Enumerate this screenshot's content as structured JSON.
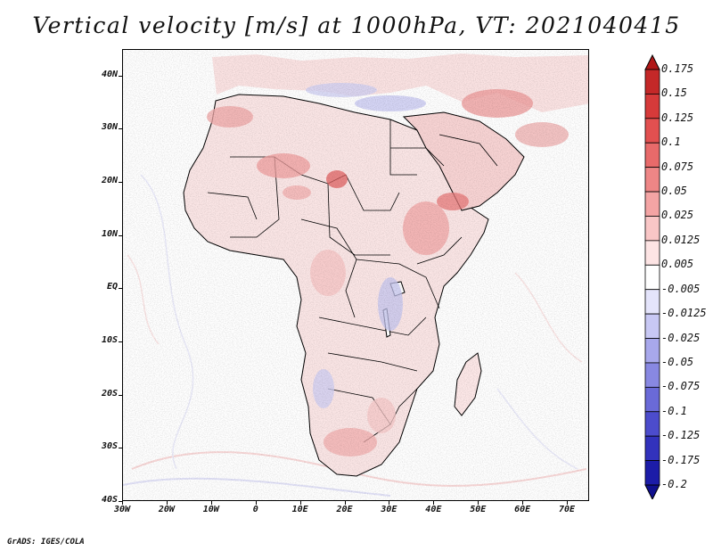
{
  "title": "Vertical velocity [m/s] at 1000hPa, VT: 2021040415",
  "credit": "GrADS: IGES/COLA",
  "map": {
    "lat_labels": [
      "40N",
      "30N",
      "20N",
      "10N",
      "EQ",
      "10S",
      "20S",
      "30S",
      "40S"
    ],
    "lon_labels": [
      "30W",
      "20W",
      "10W",
      "0",
      "10E",
      "20E",
      "30E",
      "40E",
      "50E",
      "60E",
      "70E"
    ],
    "lat_range": [
      -40,
      45
    ],
    "lon_range": [
      -30,
      75
    ]
  },
  "colorbar": {
    "labels": [
      "0.175",
      "0.15",
      "0.125",
      "0.1",
      "0.075",
      "0.05",
      "0.025",
      "0.0125",
      "0.005",
      "-0.005",
      "-0.0125",
      "-0.025",
      "-0.05",
      "-0.075",
      "-0.1",
      "-0.125",
      "-0.175",
      "-0.2"
    ],
    "colors": [
      "#b01818",
      "#c42828",
      "#d63a3a",
      "#e25050",
      "#e86a6a",
      "#ee8686",
      "#f4a4a4",
      "#f9c6c6",
      "#fde4e4",
      "#ffffff",
      "#e4e4fb",
      "#c8c8f4",
      "#a8a8ec",
      "#8888e2",
      "#6a6ad8",
      "#4c4ccc",
      "#3232bc",
      "#1c1ca8",
      "#10108e"
    ]
  }
}
